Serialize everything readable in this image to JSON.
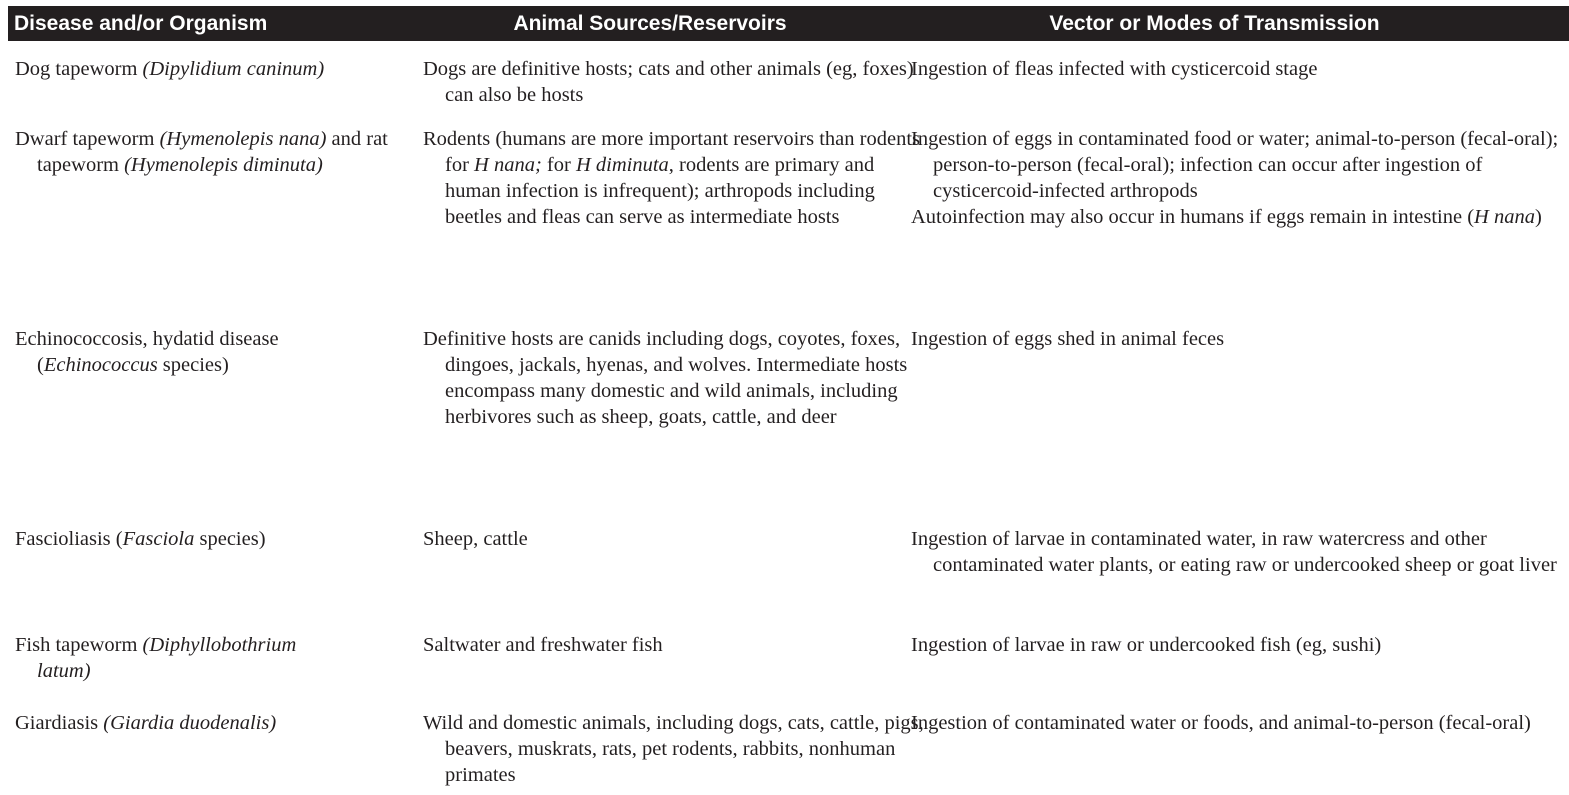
{
  "header": {
    "col1": "Disease and/or Organism",
    "col2": "Animal Sources/Reservoirs",
    "col3": "Vector or Modes of Transmission"
  },
  "rows": [
    {
      "disease_plain": "Dog tapeworm ",
      "disease_italic": "(Dipylidium caninum)",
      "sources": "Dogs are definitive hosts; cats and other animals (eg, foxes) can also be hosts",
      "transmission": "Ingestion of fleas infected with cysticercoid stage"
    },
    {
      "disease_plain_1": "Dwarf tapeworm ",
      "disease_italic_1": "(Hymenolepis nana)",
      "disease_plain_2": " and rat tapeworm ",
      "disease_italic_2": "(Hymenolepis diminuta)",
      "sources_1": "Rodents (humans are more important reservoirs than rodents for ",
      "sources_i1": "H nana;",
      "sources_2": " for ",
      "sources_i2": "H diminuta",
      "sources_3": ", rodents are primary and human infection is infrequent); arthropods including beetles and fleas can serve as intermediate hosts",
      "transmission_p1": "Ingestion of eggs in contaminated food or water; animal-to-person (fecal-oral); person-to-person (fecal-oral); infection can occur after ingestion of cysticercoid-infected arthropods",
      "transmission_p2a": "Autoinfection may also occur in humans if eggs remain in intestine (",
      "transmission_p2i": "H nana",
      "transmission_p2b": ")"
    },
    {
      "disease_plain": "Echinococcosis, hydatid disease (",
      "disease_italic": "Echinococcus",
      "disease_plain_2": " species)",
      "sources": "Definitive hosts are canids including dogs, coyotes, foxes, dingoes, jackals, hyenas, and wolves. Intermediate hosts encompass many domestic and wild animals, including herbivores such as sheep, goats, cattle, and deer",
      "transmission": "Ingestion of eggs shed in animal feces"
    },
    {
      "disease_plain": "Fascioliasis (",
      "disease_italic": "Fasciola",
      "disease_plain_2": " species)",
      "sources": "Sheep, cattle",
      "transmission": "Ingestion of larvae in contaminated water, in raw watercress and other contaminated water plants, or eating raw or undercooked sheep or goat liver"
    },
    {
      "disease_plain": "Fish tapeworm ",
      "disease_italic": "(Diphyllobothrium latum)",
      "sources": "Saltwater and freshwater fish",
      "transmission": "Ingestion of larvae in raw or undercooked fish (eg, sushi)"
    },
    {
      "disease_plain": "Giardiasis ",
      "disease_italic": "(Giardia duodenalis)",
      "sources": "Wild and domestic animals, including dogs, cats, cattle, pigs, beavers, muskrats, rats, pet rodents, rabbits, nonhuman primates",
      "transmission": "Ingestion of contaminated water or foods, and animal-to-person (fecal-oral)"
    }
  ]
}
